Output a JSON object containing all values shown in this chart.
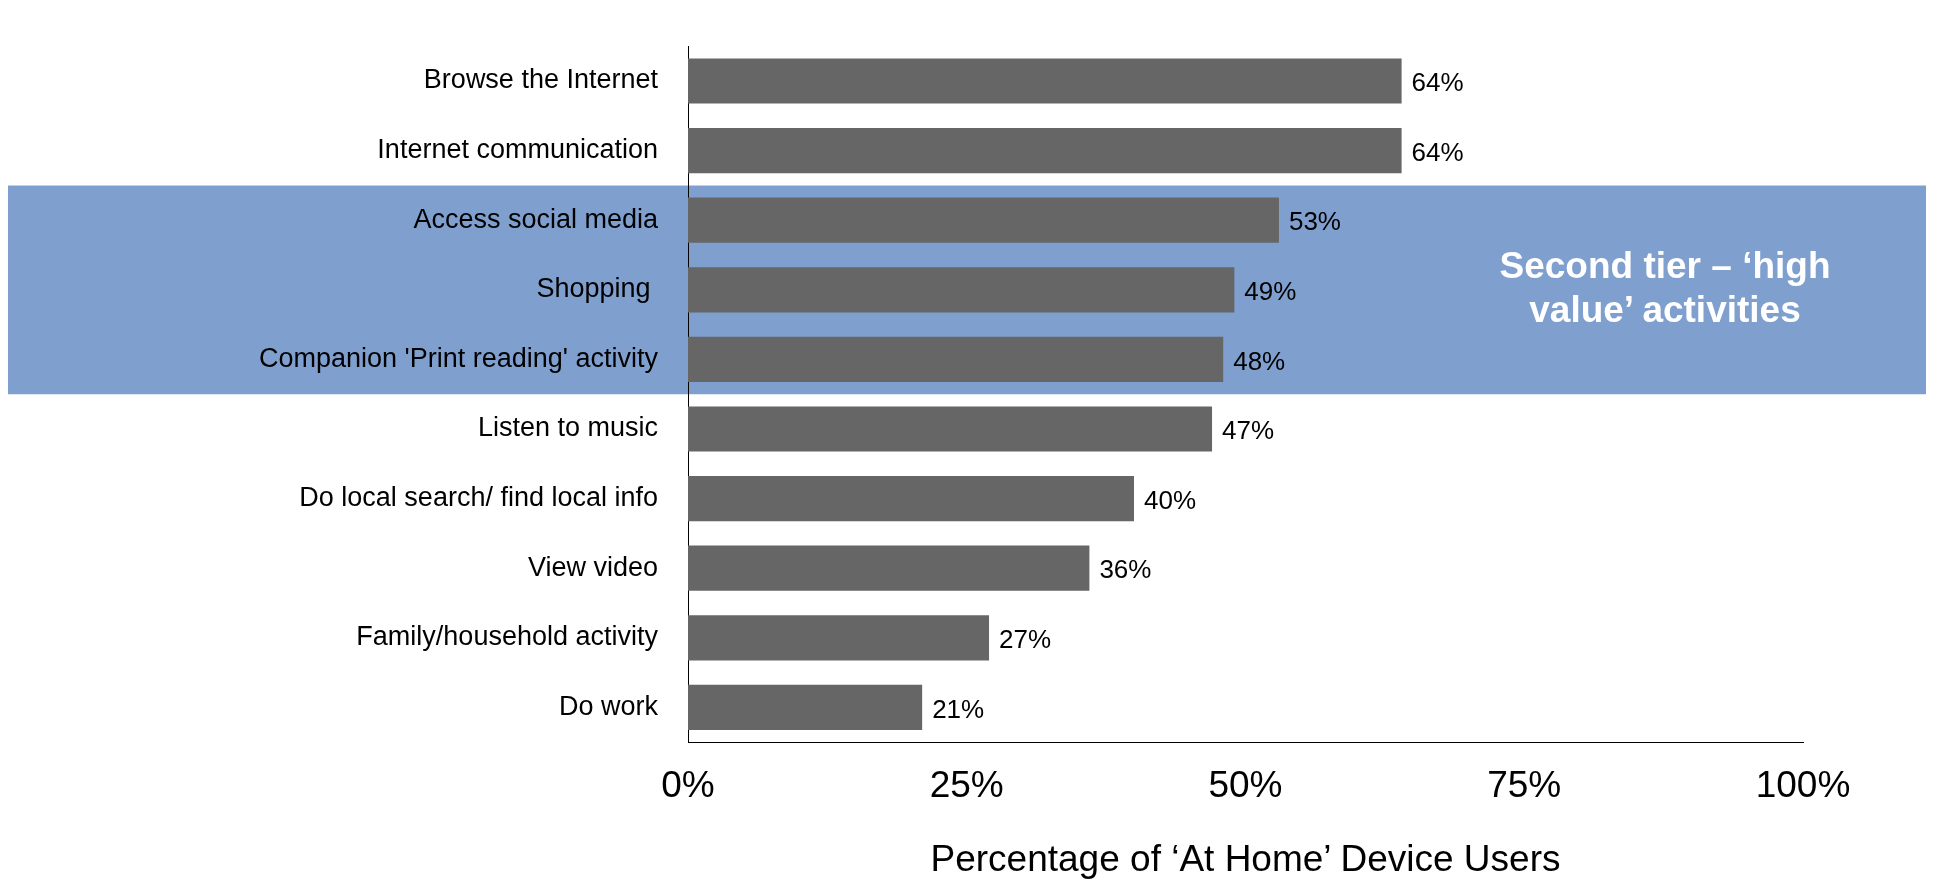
{
  "chart_data": {
    "type": "bar",
    "orientation": "horizontal",
    "xlabel": "Percentage of ‘At Home’ Device Users",
    "categories": [
      "Browse the Internet",
      "Internet communication",
      "Access social media",
      "Shopping ",
      "Companion 'Print reading' activity",
      "Listen to music",
      "Do local search/ find local info",
      "View video",
      "Family/household activity",
      "Do work"
    ],
    "values": [
      64,
      64,
      53,
      49,
      48,
      47,
      40,
      36,
      27,
      21
    ],
    "value_labels": [
      "64%",
      "64%",
      "53%",
      "49%",
      "48%",
      "47%",
      "40%",
      "36%",
      "27%",
      "21%"
    ],
    "color": "#666666",
    "xlim": [
      0,
      100
    ],
    "xticks": [
      {
        "value": 0,
        "label": "0%"
      },
      {
        "value": 25,
        "label": "25%"
      },
      {
        "value": 50,
        "label": "50%"
      },
      {
        "value": 75,
        "label": "75%"
      },
      {
        "value": 100,
        "label": "100%"
      }
    ],
    "bands": [
      {
        "axis": "y",
        "from": "Access social media",
        "to": "Companion 'Print reading' activity",
        "label": "Second tier – ‘high value’ activities",
        "color": "#7f9fcf"
      }
    ]
  }
}
